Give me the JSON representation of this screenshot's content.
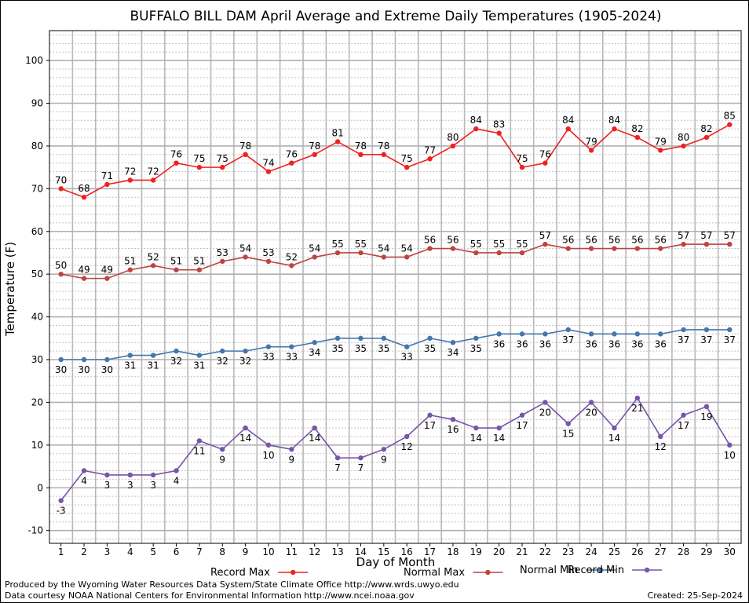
{
  "chart_data": {
    "type": "line",
    "title": "BUFFALO BILL DAM April Average and Extreme Daily Temperatures (1905-2024)",
    "xlabel": "Day of Month",
    "ylabel": "Temperature (F)",
    "ylim": [
      -13,
      107
    ],
    "yticks": [
      -10,
      0,
      10,
      20,
      30,
      40,
      50,
      60,
      70,
      80,
      90,
      100
    ],
    "grid": true,
    "legend_position": "bottom",
    "x": [
      1,
      2,
      3,
      4,
      5,
      6,
      7,
      8,
      9,
      10,
      11,
      12,
      13,
      14,
      15,
      16,
      17,
      18,
      19,
      20,
      21,
      22,
      23,
      24,
      25,
      26,
      27,
      28,
      29,
      30
    ],
    "series": [
      {
        "name": "Record Max",
        "color": "#ee2222",
        "label_pos": "above",
        "values": [
          70,
          68,
          71,
          72,
          72,
          76,
          75,
          75,
          78,
          74,
          76,
          78,
          81,
          78,
          78,
          75,
          77,
          80,
          84,
          83,
          75,
          76,
          84,
          79,
          84,
          82,
          79,
          80,
          82,
          85
        ]
      },
      {
        "name": "Normal Max",
        "color": "#bb4444",
        "label_pos": "above",
        "values": [
          50,
          49,
          49,
          51,
          52,
          51,
          51,
          53,
          54,
          53,
          52,
          54,
          55,
          55,
          54,
          54,
          56,
          56,
          55,
          55,
          55,
          57,
          56,
          56,
          56,
          56,
          56,
          57,
          57,
          57
        ]
      },
      {
        "name": "Normal Min",
        "color": "#4477aa",
        "label_pos": "below",
        "values": [
          30,
          30,
          30,
          31,
          31,
          32,
          31,
          32,
          32,
          33,
          33,
          34,
          35,
          35,
          35,
          33,
          35,
          34,
          35,
          36,
          36,
          36,
          37,
          36,
          36,
          36,
          36,
          37,
          37,
          37
        ]
      },
      {
        "name": "Record Min",
        "color": "#7755aa",
        "label_pos": "below",
        "values": [
          -3,
          4,
          3,
          3,
          3,
          4,
          11,
          9,
          14,
          10,
          9,
          14,
          7,
          7,
          9,
          12,
          17,
          16,
          14,
          14,
          17,
          20,
          15,
          20,
          14,
          21,
          12,
          17,
          19,
          10
        ]
      }
    ]
  },
  "footer": {
    "line1": "Produced by the Wyoming Water Resources Data System/State Climate Office http://www.wrds.uwyo.edu",
    "line2": "Data courtesy NOAA National Centers for Environmental Information http://www.ncei.noaa.gov",
    "created": "Created:  25-Sep-2024"
  }
}
